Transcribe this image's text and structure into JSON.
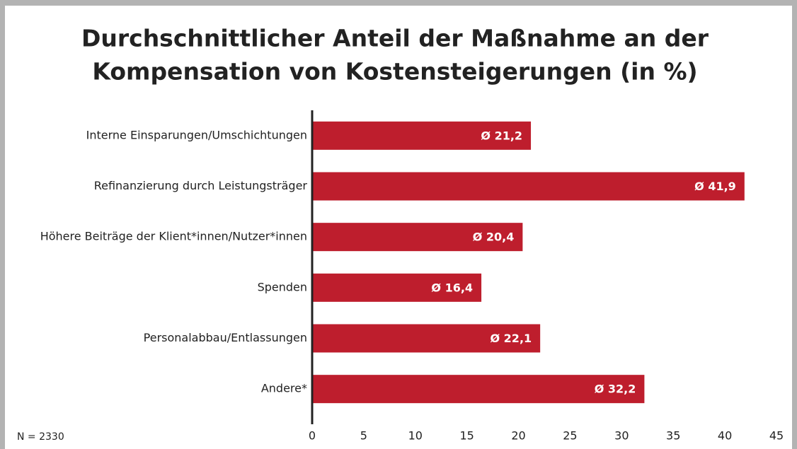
{
  "chart_data": {
    "type": "hbar",
    "title": [
      "Durchschnittlicher Anteil der Maßnahme an der",
      "Kompensation von Kostensteigerungen (in %)"
    ],
    "categories": [
      "Interne Einsparungen/Umschichtungen",
      "Refinanzierung durch Leistungsträger",
      "Höhere Beiträge der Klient*innen/Nutzer*innen",
      "Spenden",
      "Personalabbau/Entlassungen",
      "Andere*"
    ],
    "values": [
      21.2,
      41.9,
      20.4,
      16.4,
      22.1,
      32.2
    ],
    "value_labels": [
      "Ø 21,2",
      "Ø 41,9",
      "Ø 20,4",
      "Ø 16,4",
      "Ø 22,1",
      "Ø 32,2"
    ],
    "color": "#be1e2d",
    "xlim": [
      0,
      45
    ],
    "xticks": [
      0,
      5,
      10,
      15,
      20,
      25,
      30,
      35,
      40,
      45
    ],
    "grid": false,
    "note": "N = 2330"
  }
}
